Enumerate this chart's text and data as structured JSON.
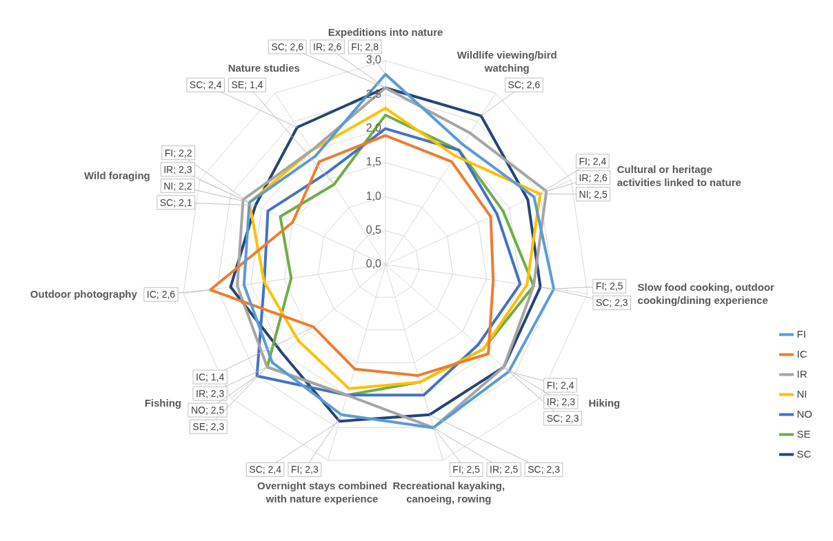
{
  "chart_data": {
    "type": "radar",
    "categories": [
      "Expeditions into nature",
      "Wildlife viewing/bird watching",
      "Cultural or heritage activities linked to nature",
      "Slow food cooking, outdoor cooking/dining experience",
      "Hiking",
      "Recreational kayaking, canoeing, rowing",
      "Overnight stays combined with nature experience",
      "Fishing",
      "Outdoor photography",
      "Wild foraging",
      "Nature studies"
    ],
    "ylim": [
      0,
      3
    ],
    "yticks": [
      {
        "value": 0,
        "label": "0,0"
      },
      {
        "value": 0.5,
        "label": "0,5"
      },
      {
        "value": 1,
        "label": "1,0"
      },
      {
        "value": 1.5,
        "label": "1,5"
      },
      {
        "value": 2,
        "label": "2,0"
      },
      {
        "value": 2.5,
        "label": "2,5"
      },
      {
        "value": 3,
        "label": "3,0"
      }
    ],
    "grid": true,
    "legend": "right",
    "marker": "none",
    "line_style": "solid",
    "series": [
      {
        "name": "FI",
        "color": "#5b9bd5",
        "values": [
          2.8,
          2.1,
          2.4,
          2.5,
          2.4,
          2.5,
          2.3,
          2.2,
          2.1,
          2.2,
          1.9
        ],
        "value_labels": [
          "FI; 2,8",
          null,
          "FI; 2,4",
          "FI; 2,5",
          "FI; 2,4",
          "FI; 2,5",
          "FI; 2,3",
          null,
          null,
          "FI; 2,2",
          null
        ]
      },
      {
        "name": "IC",
        "color": "#ed7d31",
        "values": [
          1.9,
          1.8,
          1.7,
          1.6,
          2.0,
          1.7,
          1.6,
          1.4,
          2.6,
          1.5,
          1.8
        ],
        "value_labels": [
          null,
          null,
          null,
          null,
          null,
          null,
          null,
          "IC; 1,4",
          "IC; 2,6",
          null,
          null
        ]
      },
      {
        "name": "IR",
        "color": "#a5a5a5",
        "values": [
          2.6,
          2.3,
          2.6,
          2.2,
          2.3,
          2.5,
          2.0,
          2.3,
          2.2,
          2.3,
          2.0
        ],
        "value_labels": [
          "IR; 2,6",
          null,
          "IR; 2,6",
          null,
          "IR; 2,3",
          "IR; 2,5",
          null,
          "IR; 2,3",
          null,
          "IR; 2,3",
          null
        ]
      },
      {
        "name": "NI",
        "color": "#ffc000",
        "values": [
          2.3,
          1.9,
          2.5,
          2.1,
          1.9,
          1.8,
          1.9,
          1.7,
          1.8,
          2.2,
          2.0
        ],
        "value_labels": [
          null,
          null,
          "NI; 2,5",
          null,
          null,
          null,
          null,
          null,
          null,
          "NI; 2,2",
          null
        ]
      },
      {
        "name": "NO",
        "color": "#4472c4",
        "values": [
          2.0,
          2.0,
          1.8,
          2.0,
          1.8,
          2.0,
          2.0,
          2.5,
          1.8,
          1.9,
          1.6
        ],
        "value_labels": [
          null,
          null,
          null,
          null,
          null,
          null,
          null,
          "NO; 2,5",
          null,
          null,
          null
        ]
      },
      {
        "name": "SE",
        "color": "#70ad47",
        "values": [
          2.2,
          2.0,
          1.9,
          2.2,
          1.9,
          1.8,
          2.0,
          2.3,
          1.4,
          1.7,
          1.4
        ],
        "value_labels": [
          null,
          null,
          null,
          null,
          null,
          null,
          null,
          "SE; 2,3",
          null,
          null,
          "SE; 1,4"
        ]
      },
      {
        "name": "SC",
        "color": "#264478",
        "values": [
          2.6,
          2.6,
          2.3,
          2.3,
          2.3,
          2.3,
          2.4,
          2.0,
          2.3,
          2.1,
          2.4
        ],
        "value_labels": [
          "SC; 2,6",
          "SC; 2,6",
          null,
          "SC; 2,3",
          "SC; 2,3",
          "SC; 2,3",
          "SC; 2,4",
          null,
          null,
          "SC; 2,1",
          "SC; 2,4"
        ]
      }
    ]
  }
}
